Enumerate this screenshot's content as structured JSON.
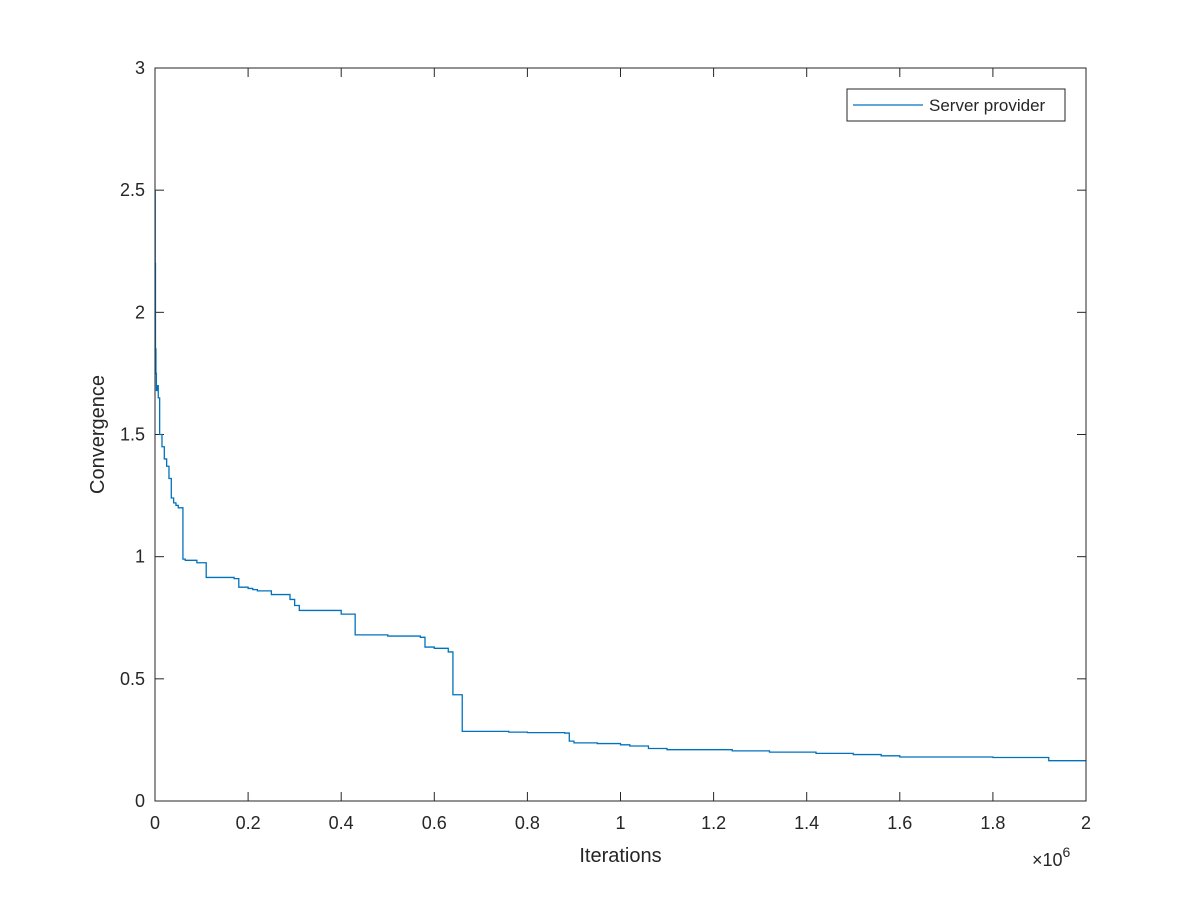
{
  "chart_data": {
    "type": "line",
    "xlabel": "Iterations",
    "ylabel": "Convergence",
    "x_multiplier_label": "×10",
    "x_multiplier_exponent": "6",
    "xlim": [
      0,
      2
    ],
    "ylim": [
      0,
      3
    ],
    "x_ticks": [
      "0",
      "0.2",
      "0.4",
      "0.6",
      "0.8",
      "1",
      "1.2",
      "1.4",
      "1.6",
      "1.8",
      "2"
    ],
    "y_ticks": [
      "0",
      "0.5",
      "1",
      "1.5",
      "2",
      "2.5",
      "3"
    ],
    "legend_position": "top-right",
    "grid": false,
    "series": [
      {
        "name": "Server provider",
        "color": "#0072BD",
        "step": true,
        "x": [
          0,
          0.0005,
          0.001,
          0.002,
          0.003,
          0.005,
          0.007,
          0.01,
          0.015,
          0.02,
          0.025,
          0.03,
          0.035,
          0.04,
          0.045,
          0.05,
          0.06,
          0.065,
          0.09,
          0.11,
          0.17,
          0.18,
          0.2,
          0.21,
          0.22,
          0.25,
          0.29,
          0.3,
          0.31,
          0.4,
          0.43,
          0.46,
          0.5,
          0.57,
          0.58,
          0.6,
          0.63,
          0.64,
          0.66,
          0.72,
          0.76,
          0.8,
          0.84,
          0.88,
          0.89,
          0.9,
          0.95,
          1.0,
          1.02,
          1.06,
          1.1,
          1.24,
          1.32,
          1.42,
          1.5,
          1.56,
          1.6,
          1.8,
          1.88,
          1.92,
          2.0
        ],
        "y": [
          2.5,
          2.2,
          1.85,
          1.75,
          1.68,
          1.7,
          1.65,
          1.5,
          1.45,
          1.4,
          1.37,
          1.32,
          1.24,
          1.22,
          1.21,
          1.2,
          0.99,
          0.985,
          0.975,
          0.915,
          0.91,
          0.875,
          0.87,
          0.865,
          0.86,
          0.845,
          0.825,
          0.8,
          0.78,
          0.765,
          0.68,
          0.68,
          0.675,
          0.67,
          0.63,
          0.625,
          0.61,
          0.435,
          0.285,
          0.285,
          0.282,
          0.28,
          0.28,
          0.278,
          0.245,
          0.238,
          0.235,
          0.23,
          0.225,
          0.215,
          0.21,
          0.205,
          0.2,
          0.195,
          0.19,
          0.185,
          0.18,
          0.178,
          0.178,
          0.165,
          0.165
        ]
      }
    ]
  }
}
